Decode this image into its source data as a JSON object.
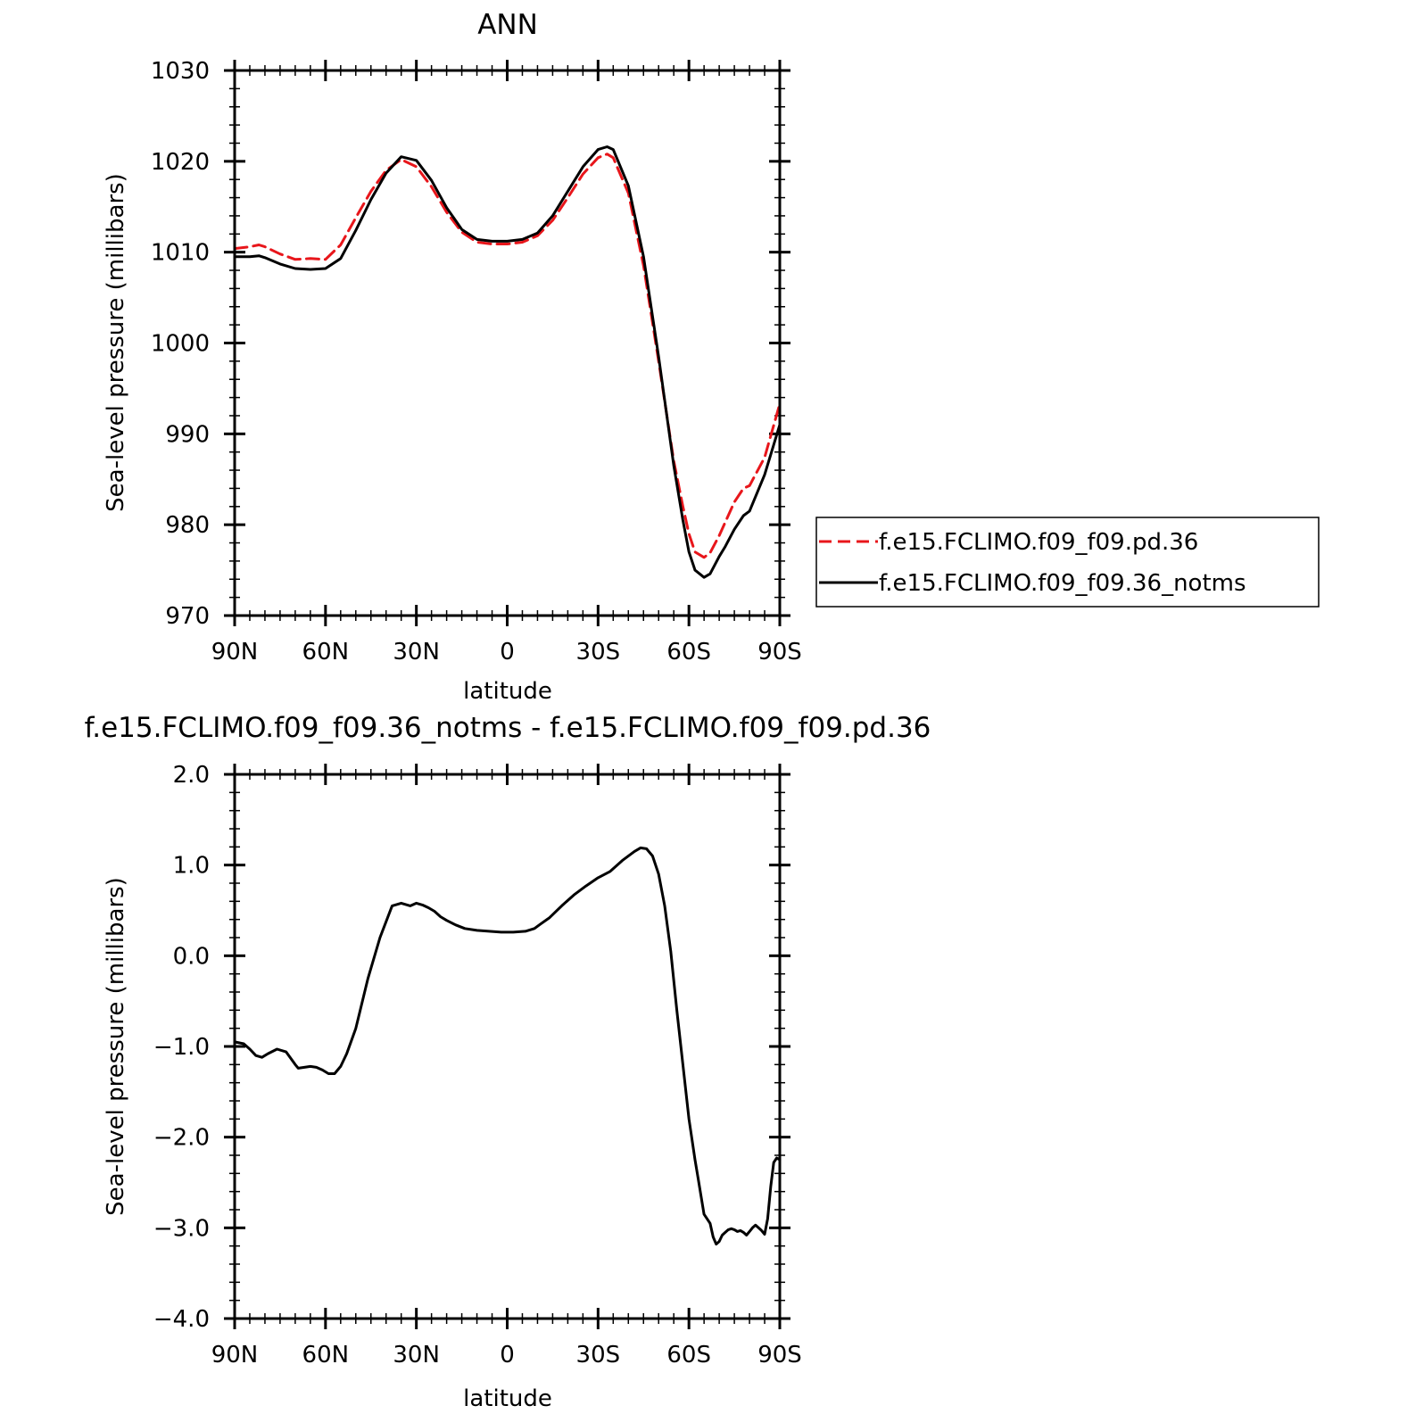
{
  "chart_data": [
    {
      "type": "line",
      "title": "ANN",
      "xlabel": "latitude",
      "ylabel": "Sea-level pressure (millibars)",
      "xlim": [
        90,
        -90
      ],
      "ylim": [
        970,
        1030
      ],
      "x_ticks": [
        90,
        60,
        30,
        0,
        -30,
        -60,
        -90
      ],
      "x_tick_labels": [
        "90N",
        "60N",
        "30N",
        "0",
        "30S",
        "60S",
        "90S"
      ],
      "y_ticks": [
        970,
        980,
        990,
        1000,
        1010,
        1020,
        1030
      ],
      "y_tick_labels": [
        "970",
        "980",
        "990",
        "1000",
        "1010",
        "1020",
        "1030"
      ],
      "grid": false,
      "legend_position": "right",
      "series": [
        {
          "name": "f.e15.FCLIMO.f09_f09.pd.36",
          "color": "#e8161b",
          "dash": "dashed",
          "x": [
            90,
            85,
            82,
            80,
            75,
            70,
            65,
            60,
            55,
            50,
            45,
            40,
            35,
            30,
            25,
            20,
            15,
            10,
            5,
            0,
            -5,
            -10,
            -15,
            -20,
            -25,
            -30,
            -33,
            -35,
            -40,
            -45,
            -50,
            -55,
            -58,
            -60,
            -62,
            -65,
            -67,
            -70,
            -75,
            -78,
            -80,
            -85,
            -90
          ],
          "y": [
            1010.4,
            1010.6,
            1010.8,
            1010.6,
            1009.8,
            1009.2,
            1009.3,
            1009.2,
            1010.8,
            1013.8,
            1016.7,
            1019.0,
            1020.2,
            1019.4,
            1017.2,
            1014.4,
            1012.2,
            1011.1,
            1010.9,
            1010.9,
            1011.1,
            1011.8,
            1013.5,
            1016.0,
            1018.6,
            1020.4,
            1020.8,
            1020.4,
            1016.5,
            1008.5,
            998.0,
            987.0,
            982.0,
            979.0,
            977.0,
            976.4,
            976.9,
            978.8,
            982.5,
            984.0,
            984.3,
            987.4,
            993.3
          ]
        },
        {
          "name": "f.e15.FCLIMO.f09_f09.36_notms",
          "color": "#000000",
          "dash": "solid",
          "x": [
            90,
            85,
            82,
            80,
            75,
            70,
            65,
            60,
            55,
            50,
            45,
            40,
            35,
            30,
            25,
            20,
            15,
            10,
            5,
            0,
            -5,
            -10,
            -15,
            -20,
            -25,
            -30,
            -33,
            -35,
            -40,
            -45,
            -50,
            -55,
            -58,
            -60,
            -62,
            -65,
            -67,
            -70,
            -72,
            -75,
            -78,
            -80,
            -85,
            -90
          ],
          "y": [
            1009.5,
            1009.5,
            1009.6,
            1009.4,
            1008.7,
            1008.2,
            1008.1,
            1008.2,
            1009.3,
            1012.4,
            1015.8,
            1018.7,
            1020.5,
            1020.1,
            1017.9,
            1014.9,
            1012.5,
            1011.4,
            1011.2,
            1011.2,
            1011.4,
            1012.1,
            1014.0,
            1016.7,
            1019.4,
            1021.3,
            1021.6,
            1021.3,
            1017.3,
            1009.5,
            998.5,
            986.5,
            980.5,
            977.0,
            975.0,
            974.2,
            974.6,
            976.5,
            977.6,
            979.5,
            981.0,
            981.5,
            985.5,
            991.0
          ]
        }
      ]
    },
    {
      "type": "line",
      "title": "f.e15.FCLIMO.f09_f09.36_notms - f.e15.FCLIMO.f09_f09.pd.36",
      "xlabel": "latitude",
      "ylabel": "Sea-level pressure (millibars)",
      "xlim": [
        90,
        -90
      ],
      "ylim": [
        -4.0,
        2.0
      ],
      "x_ticks": [
        90,
        60,
        30,
        0,
        -30,
        -60,
        -90
      ],
      "x_tick_labels": [
        "90N",
        "60N",
        "30N",
        "0",
        "30S",
        "60S",
        "90S"
      ],
      "y_ticks": [
        -4,
        -3,
        -2,
        -1,
        0,
        1,
        2
      ],
      "y_tick_labels": [
        "−4.0",
        "−3.0",
        "−2.0",
        "−1.0",
        "0.0",
        "1.0",
        "2.0"
      ],
      "grid": false,
      "series": [
        {
          "color": "#000000",
          "x": [
            90,
            87,
            85,
            83,
            81,
            79,
            76,
            73,
            70,
            69,
            67,
            65,
            63,
            61,
            59,
            57,
            55,
            53,
            50,
            46,
            42,
            38,
            35,
            32,
            30,
            28,
            26,
            24,
            22,
            20,
            17,
            14,
            10,
            6,
            2,
            -2,
            -6,
            -9,
            -11,
            -14,
            -18,
            -22,
            -26,
            -30,
            -34,
            -38,
            -42,
            -44,
            -46,
            -48,
            -50,
            -52,
            -54,
            -56,
            -58,
            -60,
            -62,
            -63,
            -65,
            -67,
            -68,
            -69,
            -70,
            -71,
            -72,
            -73,
            -74,
            -75,
            -76,
            -77,
            -78,
            -79,
            -80,
            -81,
            -82,
            -83,
            -84,
            -85,
            -86,
            -87,
            -88,
            -89,
            -90
          ],
          "y": [
            -0.95,
            -0.97,
            -1.03,
            -1.1,
            -1.12,
            -1.08,
            -1.03,
            -1.06,
            -1.2,
            -1.24,
            -1.23,
            -1.22,
            -1.23,
            -1.26,
            -1.3,
            -1.3,
            -1.22,
            -1.08,
            -0.8,
            -0.25,
            0.2,
            0.55,
            0.58,
            0.55,
            0.58,
            0.56,
            0.53,
            0.49,
            0.43,
            0.39,
            0.34,
            0.3,
            0.28,
            0.27,
            0.26,
            0.26,
            0.27,
            0.3,
            0.35,
            0.42,
            0.55,
            0.67,
            0.77,
            0.86,
            0.93,
            1.05,
            1.15,
            1.19,
            1.18,
            1.1,
            0.9,
            0.55,
            0.05,
            -0.6,
            -1.2,
            -1.8,
            -2.25,
            -2.45,
            -2.85,
            -2.95,
            -3.1,
            -3.18,
            -3.15,
            -3.08,
            -3.05,
            -3.02,
            -3.01,
            -3.02,
            -3.04,
            -3.03,
            -3.05,
            -3.08,
            -3.04,
            -3.0,
            -2.97,
            -3.0,
            -3.03,
            -3.07,
            -2.9,
            -2.55,
            -2.28,
            -2.23,
            -2.25
          ]
        }
      ]
    }
  ],
  "legend": {
    "items": [
      "f.e15.FCLIMO.f09_f09.pd.36",
      "f.e15.FCLIMO.f09_f09.36_notms"
    ]
  }
}
